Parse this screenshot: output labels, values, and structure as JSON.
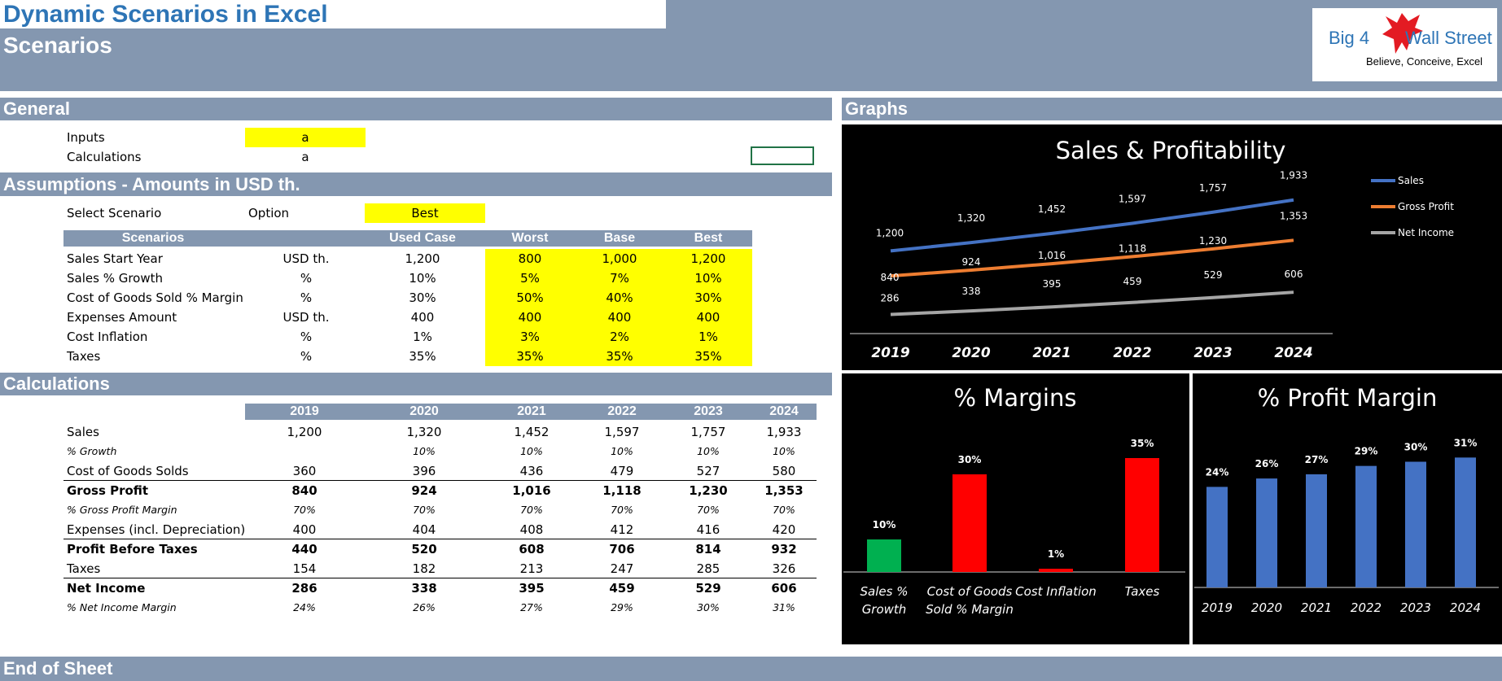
{
  "title": "Dynamic Scenarios in Excel",
  "subtitle": "Scenarios",
  "logo": {
    "brand_left": "Big 4",
    "brand_right": "Wall Street",
    "tagline": "Believe, Conceive, Excel",
    "icon": "eagle-icon"
  },
  "sections": {
    "general": "General",
    "graphs": "Graphs",
    "assumptions": "Assumptions - Amounts in USD th.",
    "calculations": "Calculations",
    "end": "End of Sheet"
  },
  "general": {
    "inputs_label": "Inputs",
    "inputs_value": "a",
    "calcs_label": "Calculations",
    "calcs_value": "a"
  },
  "assumptions": {
    "select_label": "Select Scenario",
    "option_label": "Option",
    "selected": "Best",
    "headers": [
      "Scenarios",
      "Used Case",
      "Worst",
      "Base",
      "Best"
    ],
    "rows": [
      {
        "label": "Sales Start Year",
        "unit": "USD th.",
        "used": "1,200",
        "worst": "800",
        "base": "1,000",
        "best": "1,200"
      },
      {
        "label": "Sales % Growth",
        "unit": "%",
        "used": "10%",
        "worst": "5%",
        "base": "7%",
        "best": "10%"
      },
      {
        "label": "Cost of Goods Sold % Margin",
        "unit": "%",
        "used": "30%",
        "worst": "50%",
        "base": "40%",
        "best": "30%"
      },
      {
        "label": "Expenses Amount",
        "unit": "USD th.",
        "used": "400",
        "worst": "400",
        "base": "400",
        "best": "400"
      },
      {
        "label": "Cost Inflation",
        "unit": "%",
        "used": "1%",
        "worst": "3%",
        "base": "2%",
        "best": "1%"
      },
      {
        "label": "Taxes",
        "unit": "%",
        "used": "35%",
        "worst": "35%",
        "base": "35%",
        "best": "35%"
      }
    ]
  },
  "calculations": {
    "years": [
      "2019",
      "2020",
      "2021",
      "2022",
      "2023",
      "2024"
    ],
    "rows": [
      {
        "label": "Sales",
        "style": "normal",
        "values": [
          "1,200",
          "1,320",
          "1,452",
          "1,597",
          "1,757",
          "1,933"
        ]
      },
      {
        "label": "% Growth",
        "style": "italic",
        "values": [
          "",
          "10%",
          "10%",
          "10%",
          "10%",
          "10%"
        ]
      },
      {
        "label": "Cost of Goods Solds",
        "style": "normal",
        "values": [
          "360",
          "396",
          "436",
          "479",
          "527",
          "580"
        ]
      },
      {
        "label": "Gross Profit",
        "style": "bold",
        "values": [
          "840",
          "924",
          "1,016",
          "1,118",
          "1,230",
          "1,353"
        ]
      },
      {
        "label": "% Gross Profit Margin",
        "style": "italic",
        "values": [
          "70%",
          "70%",
          "70%",
          "70%",
          "70%",
          "70%"
        ]
      },
      {
        "label": "Expenses (incl. Depreciation)",
        "style": "normal",
        "values": [
          "400",
          "404",
          "408",
          "412",
          "416",
          "420"
        ]
      },
      {
        "label": "Profit Before Taxes",
        "style": "bold",
        "values": [
          "440",
          "520",
          "608",
          "706",
          "814",
          "932"
        ]
      },
      {
        "label": "Taxes",
        "style": "normal",
        "values": [
          "154",
          "182",
          "213",
          "247",
          "285",
          "326"
        ]
      },
      {
        "label": "Net Income",
        "style": "bold",
        "values": [
          "286",
          "338",
          "395",
          "459",
          "529",
          "606"
        ]
      },
      {
        "label": "% Net Income Margin",
        "style": "italic",
        "values": [
          "24%",
          "26%",
          "27%",
          "29%",
          "30%",
          "31%"
        ]
      }
    ]
  },
  "colors": {
    "band": "#8497b0",
    "input_yellow": "#ffff00",
    "sales": "#4472c4",
    "gross_profit": "#ed7d31",
    "net_income": "#a5a5a5",
    "green": "#00b050",
    "red": "#ff0000",
    "blue_bar": "#4472c4"
  },
  "chart_data": [
    {
      "type": "line",
      "title": "Sales & Profitability",
      "x": [
        "2019",
        "2020",
        "2021",
        "2022",
        "2023",
        "2024"
      ],
      "series": [
        {
          "name": "Sales",
          "color": "#4472c4",
          "values": [
            1200,
            1320,
            1452,
            1597,
            1757,
            1933
          ],
          "labels": [
            "1,200",
            "1,320",
            "1,452",
            "1,597",
            "1,757",
            "1,933"
          ]
        },
        {
          "name": "Gross Profit",
          "color": "#ed7d31",
          "values": [
            840,
            924,
            1016,
            1118,
            1230,
            1353
          ],
          "labels": [
            "840",
            "924",
            "1,016",
            "1,118",
            "1,230",
            "1,353"
          ]
        },
        {
          "name": "Net Income",
          "color": "#a5a5a5",
          "values": [
            286,
            338,
            395,
            459,
            529,
            606
          ],
          "labels": [
            "286",
            "338",
            "395",
            "459",
            "529",
            "606"
          ]
        }
      ],
      "legend": "right"
    },
    {
      "type": "bar",
      "title": "% Margins",
      "categories": [
        "Sales % Growth",
        "Cost of Goods Sold % Margin",
        "Cost Inflation",
        "Taxes"
      ],
      "category_lines": [
        [
          "Sales %",
          "Growth"
        ],
        [
          "Cost of Goods",
          "Sold % Margin"
        ],
        [
          "Cost Inflation"
        ],
        [
          "Taxes"
        ]
      ],
      "values": [
        10,
        30,
        1,
        35
      ],
      "labels": [
        "10%",
        "30%",
        "1%",
        "35%"
      ],
      "colors": [
        "#00b050",
        "#ff0000",
        "#ff0000",
        "#ff0000"
      ]
    },
    {
      "type": "bar",
      "title": "% Profit Margin",
      "categories": [
        "2019",
        "2020",
        "2021",
        "2022",
        "2023",
        "2024"
      ],
      "values": [
        24,
        26,
        27,
        29,
        30,
        31
      ],
      "labels": [
        "24%",
        "26%",
        "27%",
        "29%",
        "30%",
        "31%"
      ],
      "color": "#4472c4"
    }
  ]
}
